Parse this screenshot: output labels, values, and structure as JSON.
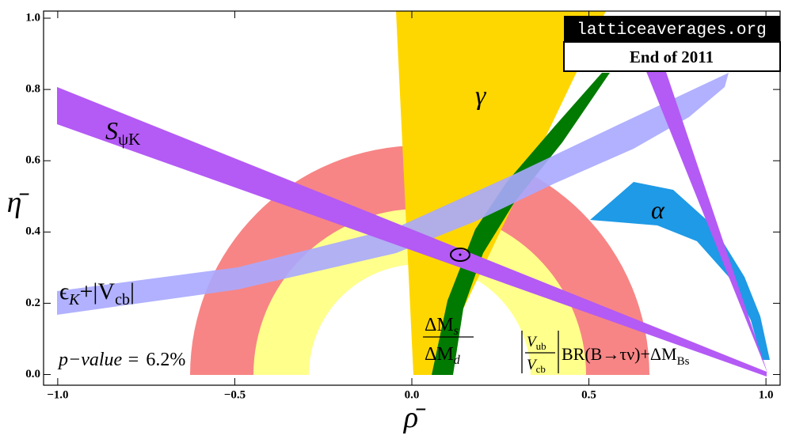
{
  "chart_data": {
    "type": "constraint-plot",
    "xlabel": "ρ̄",
    "ylabel": "η̄",
    "xlim": [
      -1.04,
      1.04
    ],
    "ylim": [
      -0.03,
      1.02
    ],
    "xticks": [
      {
        "value": -1,
        "label": "−1.0"
      },
      {
        "value": -0.5,
        "label": "−0.5"
      },
      {
        "value": 0,
        "label": "0.0"
      },
      {
        "value": 0.5,
        "label": "0.5"
      },
      {
        "value": 1,
        "label": "1.0"
      }
    ],
    "yticks": [
      {
        "value": 0,
        "label": "0.0"
      },
      {
        "value": 0.2,
        "label": "0.2"
      },
      {
        "value": 0.4,
        "label": "0.4"
      },
      {
        "value": 0.6,
        "label": "0.6"
      },
      {
        "value": 0.8,
        "label": "0.8"
      },
      {
        "value": 1,
        "label": "1.0"
      }
    ],
    "inset": {
      "site": "latticeaverages.org",
      "date": "End of 2011"
    },
    "labels": {
      "gamma": "γ",
      "alpha": "α",
      "s_psi_k": {
        "main": "S",
        "sub": "ψK"
      },
      "epsilon_k": {
        "main": "ϵ",
        "sub": "K",
        "rest": "+|V",
        "sub2": "cb",
        "end": "|"
      },
      "dms_dmd": {
        "num": "ΔM",
        "num_sub": "s",
        "den": "ΔM",
        "den_sub": "d"
      },
      "vub_vcb": {
        "num": "V",
        "num_sub": "ub",
        "den": "V",
        "den_sub": "cb",
        "rest": "BR(B→τν)+ΔM",
        "rest_sub": "Bs"
      },
      "p_value": {
        "label": "p−value =",
        "value": "6.2%"
      }
    }
  }
}
